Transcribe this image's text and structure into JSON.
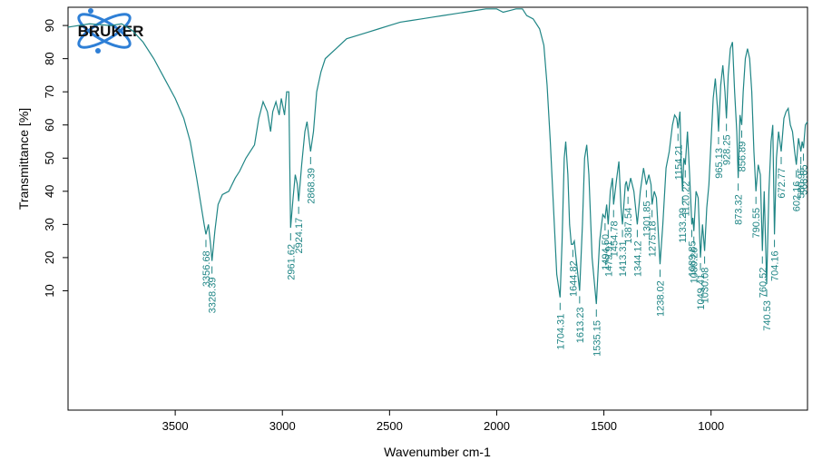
{
  "chart_data": {
    "type": "line",
    "logo": "BRUKER",
    "xlabel": "Wavenumber cm-1",
    "ylabel": "Transmittance [%]",
    "color": "#1f8585",
    "xlim": [
      4000,
      550
    ],
    "ylim": [
      -26,
      95.5
    ],
    "xticks": [
      3500,
      3000,
      2500,
      2000,
      1500,
      1000
    ],
    "yticks": [
      10,
      20,
      30,
      40,
      50,
      60,
      70,
      80,
      90
    ],
    "x": [
      4000,
      3900,
      3800,
      3750,
      3700,
      3650,
      3600,
      3550,
      3500,
      3460,
      3430,
      3400,
      3380,
      3365,
      3356.68,
      3345,
      3335,
      3328.39,
      3315,
      3300,
      3280,
      3250,
      3220,
      3200,
      3170,
      3150,
      3130,
      3110,
      3090,
      3070,
      3055,
      3045,
      3030,
      3015,
      3005,
      2990,
      2980,
      2970,
      2961.62,
      2950,
      2940,
      2930,
      2924.17,
      2910,
      2895,
      2885,
      2868.39,
      2855,
      2840,
      2820,
      2800,
      2750,
      2700,
      2650,
      2600,
      2550,
      2500,
      2450,
      2400,
      2350,
      2300,
      2250,
      2200,
      2150,
      2100,
      2050,
      2000,
      1970,
      1940,
      1910,
      1880,
      1860,
      1830,
      1800,
      1780,
      1765,
      1750,
      1735,
      1720,
      1704.31,
      1695,
      1685,
      1678,
      1668,
      1660,
      1652,
      1644.82,
      1638,
      1630,
      1613.23,
      1600,
      1590,
      1580,
      1570,
      1555,
      1535.15,
      1520,
      1505,
      1494.5,
      1487,
      1479.91,
      1470,
      1460,
      1454.78,
      1440,
      1430,
      1420,
      1413.31,
      1400,
      1395,
      1387.54,
      1375,
      1360,
      1344.12,
      1330,
      1315,
      1301.85,
      1290,
      1280,
      1275.18,
      1265,
      1255,
      1238.02,
      1225,
      1210,
      1195,
      1180,
      1170,
      1160,
      1154.21,
      1145,
      1140,
      1133.29,
      1127,
      1120.22,
      1110,
      1100,
      1089.85,
      1085,
      1080.26,
      1070,
      1060,
      1049.41,
      1040,
      1030.08,
      1020,
      1010,
      1000,
      990,
      980,
      970,
      965.13,
      955,
      945,
      935,
      928.25,
      920,
      910,
      900,
      890,
      880,
      873.32,
      865,
      856.89,
      850,
      840,
      830,
      820,
      810,
      800,
      790.55,
      780,
      770,
      760.52,
      752,
      740.53,
      730,
      720,
      712,
      704.16,
      695,
      685,
      672.77,
      660,
      650,
      640,
      630,
      620,
      610,
      602.16,
      592,
      580.95,
      575,
      568.85,
      560,
      550
    ],
    "values": [
      89.5,
      90.5,
      90,
      90.5,
      88.5,
      85,
      80,
      74,
      68,
      62,
      55,
      44,
      36,
      30,
      27,
      30,
      24,
      19,
      28,
      36,
      39,
      40,
      44,
      46,
      50,
      52,
      54,
      62,
      67,
      64,
      58,
      64,
      67,
      63,
      68,
      63,
      70,
      70,
      29,
      38,
      45,
      42,
      37,
      48,
      58,
      61,
      52,
      58,
      70,
      76,
      80,
      83,
      86,
      87,
      88,
      89,
      90,
      91,
      91.5,
      92,
      92.5,
      93,
      93.5,
      94,
      94.5,
      95,
      95,
      94,
      94.5,
      95,
      95,
      93,
      92,
      89,
      84,
      72,
      55,
      35,
      15,
      8,
      25,
      50,
      55,
      45,
      30,
      24,
      24,
      25,
      20,
      10,
      30,
      50,
      54,
      45,
      20,
      6,
      25,
      33,
      32,
      36,
      30,
      40,
      44,
      36,
      44,
      49,
      35,
      30,
      42,
      43,
      40,
      44,
      40,
      30,
      40,
      47,
      42,
      45,
      42,
      36,
      40,
      38,
      18,
      30,
      47,
      52,
      60,
      63,
      62,
      59,
      64,
      50,
      40,
      50,
      48,
      58,
      45,
      30,
      32,
      28,
      40,
      38,
      20,
      30,
      22,
      35,
      42,
      55,
      68,
      74,
      65,
      58,
      72,
      78,
      70,
      62,
      75,
      83,
      85,
      70,
      58,
      44,
      63,
      60,
      70,
      80,
      83,
      80,
      70,
      52,
      40,
      48,
      45,
      22,
      40,
      12,
      40,
      55,
      60,
      27,
      50,
      58,
      52,
      62,
      64,
      65,
      60,
      58,
      52,
      48,
      56,
      52,
      55,
      53,
      60,
      61
    ],
    "peaks": [
      {
        "x": 3356.68,
        "y": 27
      },
      {
        "x": 3328.39,
        "y": 19
      },
      {
        "x": 2961.62,
        "y": 29
      },
      {
        "x": 2924.17,
        "y": 37
      },
      {
        "x": 2868.39,
        "y": 52
      },
      {
        "x": 1704.31,
        "y": 8
      },
      {
        "x": 1644.82,
        "y": 24
      },
      {
        "x": 1613.23,
        "y": 10
      },
      {
        "x": 1535.15,
        "y": 6
      },
      {
        "x": 1494.5,
        "label": "1494.50",
        "y": 32
      },
      {
        "x": 1479.91,
        "y": 30
      },
      {
        "x": 1454.78,
        "y": 36
      },
      {
        "x": 1413.31,
        "y": 30
      },
      {
        "x": 1387.54,
        "y": 40
      },
      {
        "x": 1344.12,
        "y": 30
      },
      {
        "x": 1301.85,
        "y": 42
      },
      {
        "x": 1275.18,
        "y": 36
      },
      {
        "x": 1238.02,
        "y": 18
      },
      {
        "x": 1154.21,
        "y": 59
      },
      {
        "x": 1133.29,
        "y": 40
      },
      {
        "x": 1120.22,
        "y": 48
      },
      {
        "x": 1089.85,
        "y": 30
      },
      {
        "x": 1080.26,
        "y": 28
      },
      {
        "x": 1049.41,
        "y": 20
      },
      {
        "x": 1030.08,
        "y": 22
      },
      {
        "x": 965.13,
        "y": 58
      },
      {
        "x": 928.25,
        "y": 62
      },
      {
        "x": 873.32,
        "y": 44
      },
      {
        "x": 856.89,
        "y": 60
      },
      {
        "x": 790.55,
        "y": 40
      },
      {
        "x": 760.52,
        "y": 22
      },
      {
        "x": 740.53,
        "y": 12
      },
      {
        "x": 704.16,
        "y": 27
      },
      {
        "x": 672.77,
        "y": 52
      },
      {
        "x": 602.16,
        "y": 48
      },
      {
        "x": 580.95,
        "y": 52
      },
      {
        "x": 568.85,
        "y": 53
      }
    ]
  }
}
